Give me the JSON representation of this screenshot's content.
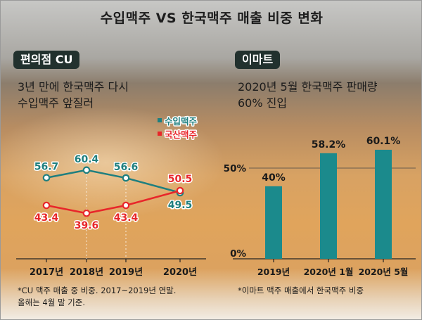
{
  "title": "수입맥주 VS 한국맥주 매출 비중 변화",
  "left_panel": {
    "badge": "편의점 CU",
    "headline_1": "3년 만에 한국맥주 다시",
    "headline_2": "수입맥주 앞질러",
    "footnote_1": "*CU 맥주 매출 중 비중. 2017~2019년 연말.",
    "footnote_2": "올해는 4월 말 기준."
  },
  "right_panel": {
    "badge": "이마트",
    "headline_1": "2020년 5월 한국맥주 판매량",
    "headline_2": "60% 진입",
    "footnote": "*이마트 맥주 매출에서 한국맥주 비중"
  },
  "colors": {
    "import": "#1e7f7f",
    "domestic": "#e8262a",
    "bar": "#1b8a8c",
    "badge_bg": "#22312e"
  },
  "chart_data": [
    {
      "type": "line",
      "categories": [
        "2017년",
        "2018년",
        "2019년",
        "2020년"
      ],
      "series": [
        {
          "name": "수입맥주",
          "values": [
            56.7,
            60.4,
            56.6,
            49.5
          ],
          "labels": [
            "56.7",
            "60.4",
            "56.6",
            "49.5"
          ],
          "color": "#1e7f7f"
        },
        {
          "name": "국산맥주",
          "values": [
            43.4,
            39.6,
            43.4,
            50.5
          ],
          "labels": [
            "43.4",
            "39.6",
            "43.4",
            "50.5"
          ],
          "color": "#e8262a"
        }
      ],
      "legend_position": "top-right",
      "grid": false
    },
    {
      "type": "bar",
      "categories": [
        "2019년",
        "2020년 1월",
        "2020년 5월"
      ],
      "values": [
        40,
        58.2,
        60.1
      ],
      "labels": [
        "40%",
        "58.2%",
        "60.1%"
      ],
      "yticks": [
        "0%",
        "50%"
      ],
      "ylim": [
        0,
        64
      ],
      "grid": true
    }
  ]
}
